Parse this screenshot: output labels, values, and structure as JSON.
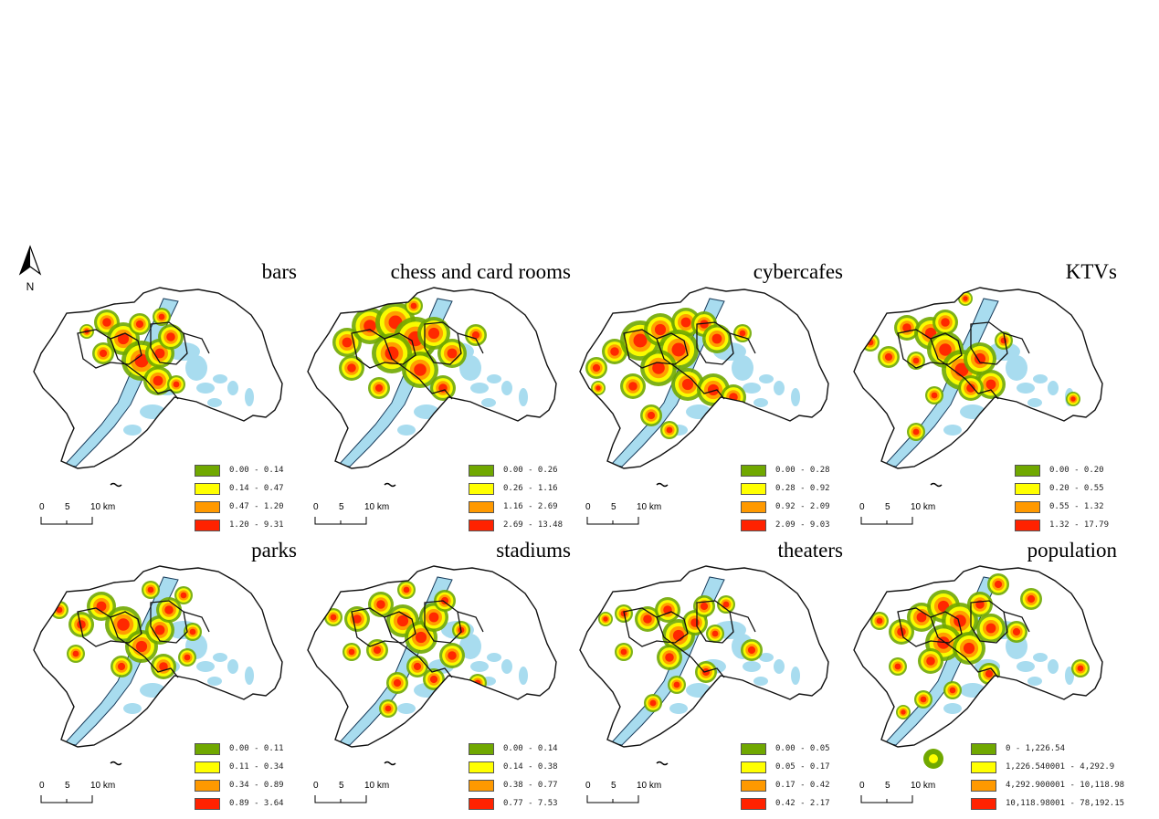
{
  "north_arrow": {
    "label": "N"
  },
  "scale_bar": {
    "ticks": [
      "0",
      "5",
      "10 km"
    ]
  },
  "colors": {
    "class1": "#70a800",
    "class2": "#ffff00",
    "class3": "#ff9900",
    "class4": "#ff2200",
    "water": "#a8dcef"
  },
  "panels": [
    {
      "title": "bars",
      "legend": [
        "0.00 - 0.14",
        "0.14 - 0.47",
        "0.47 - 1.20",
        "1.20 - 9.31"
      ]
    },
    {
      "title": "chess and card rooms",
      "legend": [
        "0.00 - 0.26",
        "0.26 - 1.16",
        "1.16 - 2.69",
        "2.69 - 13.48"
      ]
    },
    {
      "title": "cybercafes",
      "legend": [
        "0.00 - 0.28",
        "0.28 - 0.92",
        "0.92 - 2.09",
        "2.09 - 9.03"
      ]
    },
    {
      "title": "KTVs",
      "legend": [
        "0.00 - 0.20",
        "0.20 - 0.55",
        "0.55 - 1.32",
        "1.32 - 17.79"
      ]
    },
    {
      "title": "parks",
      "legend": [
        "0.00 - 0.11",
        "0.11 - 0.34",
        "0.34 - 0.89",
        "0.89 - 3.64"
      ]
    },
    {
      "title": "stadiums",
      "legend": [
        "0.00 - 0.14",
        "0.14 - 0.38",
        "0.38 - 0.77",
        "0.77 - 7.53"
      ]
    },
    {
      "title": "theaters",
      "legend": [
        "0.00 - 0.05",
        "0.05 - 0.17",
        "0.17 - 0.42",
        "0.42 - 2.17"
      ]
    },
    {
      "title": "population",
      "legend": [
        "0 - 1,226.54",
        "1,226.540001 - 4,292.9",
        "4,292.900001 - 10,118.98",
        "10,118.98001 - 78,192.15"
      ]
    }
  ]
}
